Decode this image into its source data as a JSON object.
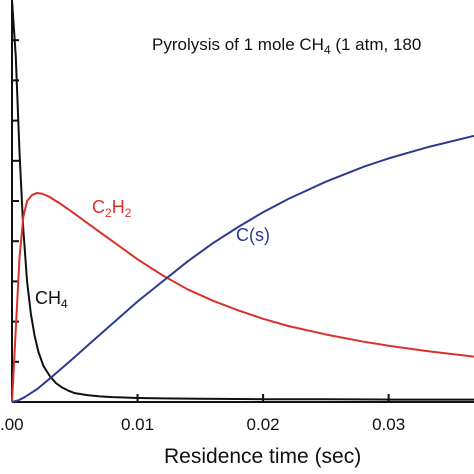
{
  "chart_data": {
    "type": "line",
    "title": "Pyrolysis of 1 mole CH",
    "title_subscript": "4",
    "title_suffix": " (1 atm, 180",
    "xlabel": "Residence time (sec)",
    "ylabel": "",
    "xlim": [
      0.0,
      0.0368
    ],
    "ylim": [
      0,
      1.0
    ],
    "x_ticks": [
      {
        "value": 0.0,
        "label": ".00"
      },
      {
        "value": 0.01,
        "label": "0.01"
      },
      {
        "value": 0.02,
        "label": "0.02"
      },
      {
        "value": 0.03,
        "label": "0.03"
      }
    ],
    "y_ticks": [
      0.1,
      0.2,
      0.3,
      0.4,
      0.5,
      0.6,
      0.7,
      0.8,
      0.9
    ],
    "grid": false,
    "series": [
      {
        "name": "CH",
        "name_sub": "4",
        "color": "#111111",
        "x": [
          0.0,
          0.0003,
          0.0006,
          0.0009,
          0.0012,
          0.0015,
          0.0018,
          0.0021,
          0.0025,
          0.003,
          0.0035,
          0.004,
          0.0045,
          0.005,
          0.006,
          0.007,
          0.008,
          0.01,
          0.012,
          0.015,
          0.02,
          0.025,
          0.03,
          0.0368
        ],
        "y": [
          1.0,
          0.86,
          0.62,
          0.43,
          0.3,
          0.22,
          0.165,
          0.125,
          0.09,
          0.065,
          0.047,
          0.036,
          0.028,
          0.022,
          0.017,
          0.014,
          0.012,
          0.01,
          0.009,
          0.008,
          0.007,
          0.007,
          0.006,
          0.006
        ]
      },
      {
        "name": "C",
        "name_sub": "2",
        "name_mid": "H",
        "name_sub2": "2",
        "color": "#d9312b",
        "x": [
          0.0,
          0.0003,
          0.0006,
          0.0009,
          0.0012,
          0.0016,
          0.002,
          0.0024,
          0.003,
          0.004,
          0.005,
          0.006,
          0.008,
          0.01,
          0.012,
          0.014,
          0.016,
          0.018,
          0.02,
          0.022,
          0.025,
          0.028,
          0.03,
          0.033,
          0.0368
        ],
        "y": [
          0.0,
          0.18,
          0.36,
          0.46,
          0.5,
          0.515,
          0.52,
          0.518,
          0.51,
          0.49,
          0.468,
          0.445,
          0.4,
          0.355,
          0.315,
          0.28,
          0.252,
          0.228,
          0.207,
          0.189,
          0.168,
          0.15,
          0.14,
          0.127,
          0.113
        ]
      },
      {
        "name": "C(s)",
        "color": "#2d3b8f",
        "x": [
          0.0,
          0.0005,
          0.001,
          0.0015,
          0.002,
          0.003,
          0.004,
          0.005,
          0.006,
          0.008,
          0.01,
          0.012,
          0.014,
          0.016,
          0.018,
          0.02,
          0.022,
          0.025,
          0.028,
          0.03,
          0.033,
          0.0368
        ],
        "y": [
          0.0,
          0.004,
          0.012,
          0.022,
          0.032,
          0.058,
          0.085,
          0.112,
          0.14,
          0.195,
          0.25,
          0.3,
          0.35,
          0.395,
          0.435,
          0.472,
          0.505,
          0.548,
          0.585,
          0.606,
          0.633,
          0.662
        ]
      }
    ]
  }
}
